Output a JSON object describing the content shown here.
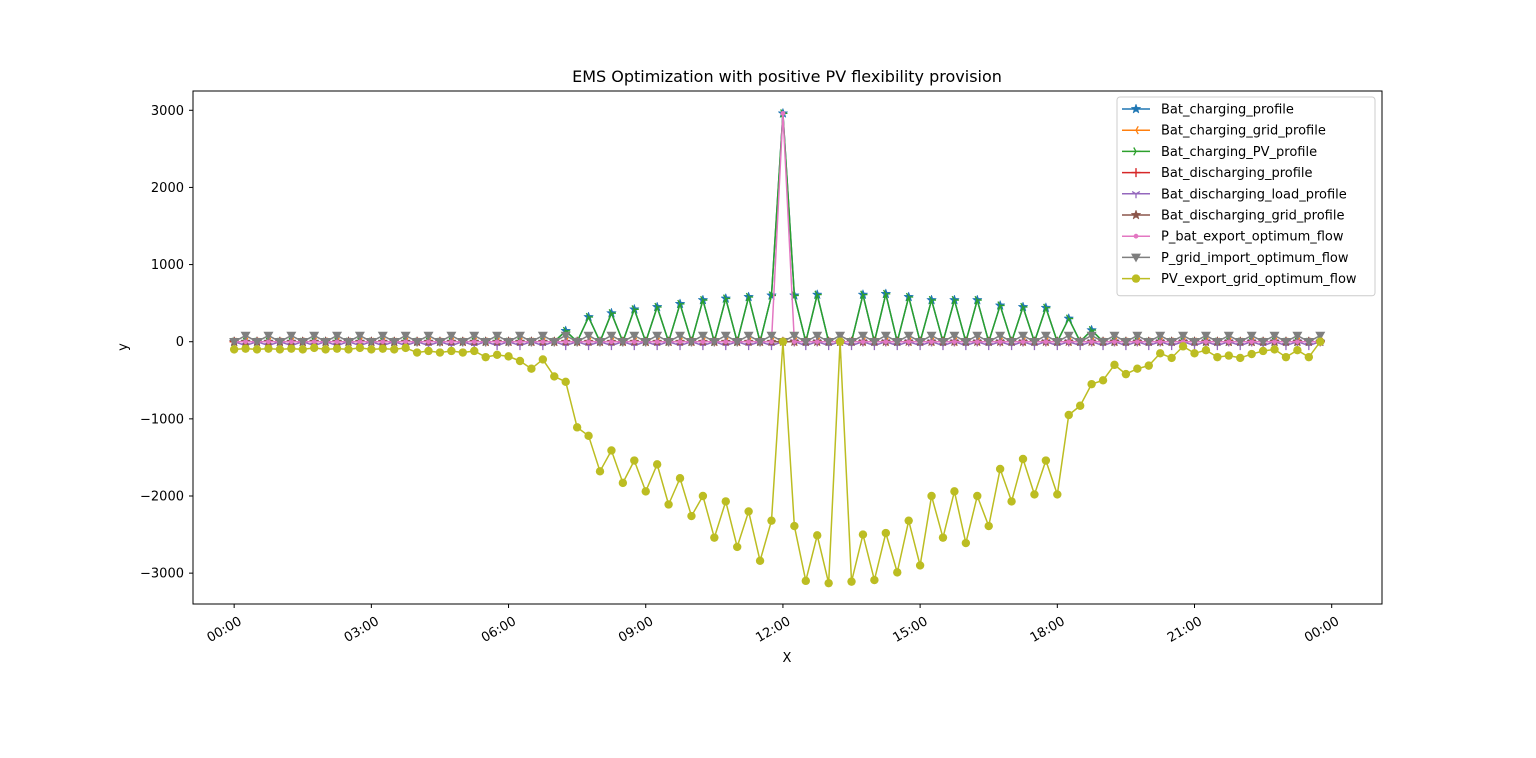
{
  "chart_data": {
    "type": "line",
    "title": "EMS Optimization with positive PV flexibility provision",
    "xlabel": "X",
    "ylabel": "y",
    "x_unit": "hours of day",
    "xlim": [
      -0.9,
      25.1
    ],
    "ylim": [
      -3400,
      3250
    ],
    "yticks": [
      -3000,
      -2000,
      -1000,
      0,
      1000,
      2000,
      3000
    ],
    "xticks": [
      {
        "value": 0,
        "label": "00:00"
      },
      {
        "value": 3,
        "label": "03:00"
      },
      {
        "value": 6,
        "label": "06:00"
      },
      {
        "value": 9,
        "label": "09:00"
      },
      {
        "value": 12,
        "label": "12:00"
      },
      {
        "value": 15,
        "label": "15:00"
      },
      {
        "value": 18,
        "label": "18:00"
      },
      {
        "value": 21,
        "label": "21:00"
      },
      {
        "value": 24,
        "label": "00:00"
      }
    ],
    "grid": false,
    "legend_position": "top-right",
    "x": [
      0,
      0.25,
      0.5,
      0.75,
      1,
      1.25,
      1.5,
      1.75,
      2,
      2.25,
      2.5,
      2.75,
      3,
      3.25,
      3.5,
      3.75,
      4,
      4.25,
      4.5,
      4.75,
      5,
      5.25,
      5.5,
      5.75,
      6,
      6.25,
      6.5,
      6.75,
      7,
      7.25,
      7.5,
      7.75,
      8,
      8.25,
      8.5,
      8.75,
      9,
      9.25,
      9.5,
      9.75,
      10,
      10.25,
      10.5,
      10.75,
      11,
      11.25,
      11.5,
      11.75,
      12,
      12.25,
      12.5,
      12.75,
      13,
      13.25,
      13.5,
      13.75,
      14,
      14.25,
      14.5,
      14.75,
      15,
      15.25,
      15.5,
      15.75,
      16,
      16.25,
      16.5,
      16.75,
      17,
      17.25,
      17.5,
      17.75,
      18,
      18.25,
      18.5,
      18.75,
      19,
      19.25,
      19.5,
      19.75,
      20,
      20.25,
      20.5,
      20.75,
      21,
      21.25,
      21.5,
      21.75,
      22,
      22.25,
      22.5,
      22.75,
      23,
      23.25,
      23.5,
      23.75
    ],
    "series": [
      {
        "name": "Bat_charging_profile",
        "color": "#1f77b4",
        "marker": "star",
        "values": [
          0,
          0,
          0,
          0,
          0,
          0,
          0,
          0,
          0,
          0,
          0,
          0,
          0,
          0,
          0,
          0,
          0,
          0,
          0,
          0,
          0,
          0,
          0,
          0,
          0,
          0,
          0,
          0,
          0,
          140,
          0,
          320,
          0,
          370,
          0,
          420,
          0,
          450,
          0,
          490,
          0,
          540,
          0,
          560,
          0,
          580,
          0,
          600,
          2960,
          600,
          0,
          610,
          0,
          0,
          0,
          610,
          0,
          620,
          0,
          580,
          0,
          540,
          0,
          540,
          0,
          540,
          0,
          470,
          0,
          450,
          0,
          440,
          0,
          300,
          0,
          150,
          0,
          0,
          0,
          0,
          0,
          0,
          0,
          0,
          0,
          0,
          0,
          0,
          0,
          0,
          0,
          0,
          0,
          0,
          0,
          0
        ]
      },
      {
        "name": "Bat_charging_grid_profile",
        "color": "#ff7f0e",
        "marker": "tri_left",
        "values": [
          0,
          0,
          0,
          0,
          0,
          0,
          0,
          0,
          0,
          0,
          0,
          0,
          0,
          0,
          0,
          0,
          0,
          0,
          0,
          0,
          0,
          0,
          0,
          0,
          0,
          0,
          0,
          0,
          0,
          0,
          0,
          0,
          0,
          0,
          0,
          0,
          0,
          0,
          0,
          0,
          0,
          0,
          0,
          0,
          0,
          0,
          0,
          0,
          0,
          0,
          0,
          0,
          0,
          0,
          0,
          0,
          0,
          0,
          0,
          0,
          0,
          0,
          0,
          0,
          0,
          0,
          0,
          0,
          0,
          0,
          0,
          0,
          0,
          0,
          0,
          0,
          0,
          0,
          0,
          0,
          0,
          0,
          0,
          0,
          0,
          0,
          0,
          0,
          0,
          0,
          0,
          0,
          0,
          0,
          0,
          0
        ]
      },
      {
        "name": "Bat_charging_PV_profile",
        "color": "#2ca02c",
        "marker": "tri_right",
        "values": [
          0,
          0,
          0,
          0,
          0,
          0,
          0,
          0,
          0,
          0,
          0,
          0,
          0,
          0,
          0,
          0,
          0,
          0,
          0,
          0,
          0,
          0,
          0,
          0,
          0,
          0,
          0,
          0,
          0,
          140,
          0,
          320,
          0,
          370,
          0,
          420,
          0,
          450,
          0,
          490,
          0,
          540,
          0,
          560,
          0,
          580,
          0,
          600,
          2960,
          600,
          0,
          610,
          0,
          0,
          0,
          610,
          0,
          620,
          0,
          580,
          0,
          540,
          0,
          540,
          0,
          540,
          0,
          470,
          0,
          450,
          0,
          440,
          0,
          300,
          0,
          150,
          0,
          0,
          0,
          0,
          0,
          0,
          0,
          0,
          0,
          0,
          0,
          0,
          0,
          0,
          0,
          0,
          0,
          0,
          0,
          0
        ]
      },
      {
        "name": "Bat_discharging_profile",
        "color": "#d62728",
        "marker": "plus",
        "values": [
          0,
          0,
          0,
          0,
          0,
          0,
          0,
          0,
          0,
          0,
          0,
          0,
          0,
          0,
          0,
          0,
          0,
          0,
          0,
          0,
          0,
          0,
          0,
          0,
          0,
          0,
          0,
          0,
          0,
          0,
          0,
          0,
          0,
          0,
          0,
          0,
          0,
          0,
          0,
          0,
          0,
          0,
          0,
          0,
          0,
          0,
          0,
          0,
          0,
          0,
          0,
          0,
          0,
          0,
          0,
          0,
          0,
          0,
          0,
          0,
          0,
          0,
          0,
          0,
          0,
          0,
          0,
          0,
          0,
          0,
          0,
          0,
          0,
          0,
          0,
          0,
          0,
          0,
          0,
          0,
          0,
          0,
          0,
          0,
          0,
          0,
          0,
          0,
          0,
          0,
          0,
          0,
          0,
          0,
          0,
          0
        ]
      },
      {
        "name": "Bat_discharging_load_profile",
        "color": "#9467bd",
        "marker": "tri_down",
        "values": [
          0,
          -50,
          0,
          -50,
          0,
          -50,
          0,
          -50,
          0,
          -50,
          0,
          -50,
          0,
          -50,
          0,
          -50,
          0,
          -50,
          0,
          -50,
          0,
          -50,
          0,
          -50,
          0,
          -50,
          0,
          -50,
          0,
          -50,
          0,
          -50,
          0,
          -50,
          0,
          -50,
          0,
          -50,
          0,
          -50,
          0,
          -50,
          0,
          -50,
          0,
          -50,
          0,
          -50,
          0,
          0,
          -50,
          0,
          -50,
          0,
          -50,
          0,
          -50,
          0,
          -50,
          0,
          -50,
          0,
          -50,
          0,
          -50,
          0,
          -50,
          0,
          -50,
          0,
          -50,
          0,
          -50,
          0,
          -50,
          0,
          -50,
          0,
          -50,
          0,
          -50,
          0,
          -50,
          0,
          -50,
          0,
          -50,
          0,
          -50,
          0,
          -50,
          0,
          -50,
          0,
          -50,
          0
        ]
      },
      {
        "name": "Bat_discharging_grid_profile",
        "color": "#8c564b",
        "marker": "star",
        "values": [
          0,
          0,
          0,
          0,
          0,
          0,
          0,
          0,
          0,
          0,
          0,
          0,
          0,
          0,
          0,
          0,
          0,
          0,
          0,
          0,
          0,
          0,
          0,
          0,
          0,
          0,
          0,
          0,
          0,
          0,
          0,
          0,
          0,
          0,
          0,
          0,
          0,
          0,
          0,
          0,
          0,
          0,
          0,
          0,
          0,
          0,
          0,
          0,
          0,
          0,
          0,
          0,
          0,
          0,
          0,
          0,
          0,
          0,
          0,
          0,
          0,
          0,
          0,
          0,
          0,
          0,
          0,
          0,
          0,
          0,
          0,
          0,
          0,
          0,
          0,
          0,
          0,
          0,
          0,
          0,
          0,
          0,
          0,
          0,
          0,
          0,
          0,
          0,
          0,
          0,
          0,
          0,
          0,
          0,
          0,
          0
        ]
      },
      {
        "name": "P_bat_export_optimum_flow",
        "color": "#e377c2",
        "marker": "point",
        "values": [
          0,
          0,
          0,
          0,
          0,
          0,
          0,
          0,
          0,
          0,
          0,
          0,
          0,
          0,
          0,
          0,
          0,
          0,
          0,
          0,
          0,
          0,
          0,
          0,
          0,
          0,
          0,
          0,
          0,
          0,
          0,
          0,
          0,
          0,
          0,
          0,
          0,
          0,
          0,
          0,
          0,
          0,
          0,
          0,
          0,
          0,
          0,
          0,
          2960,
          0,
          0,
          0,
          0,
          0,
          0,
          0,
          0,
          0,
          0,
          0,
          0,
          0,
          0,
          0,
          0,
          0,
          0,
          0,
          0,
          0,
          0,
          0,
          0,
          0,
          0,
          0,
          0,
          0,
          0,
          0,
          0,
          0,
          0,
          0,
          0,
          0,
          0,
          0,
          0,
          0,
          0,
          0,
          0,
          0,
          0,
          0
        ]
      },
      {
        "name": "P_grid_import_optimum_flow",
        "color": "#7f7f7f",
        "marker": "triangle_down",
        "values": [
          0,
          80,
          0,
          80,
          0,
          80,
          0,
          80,
          0,
          80,
          0,
          80,
          0,
          80,
          0,
          80,
          0,
          80,
          0,
          80,
          0,
          80,
          0,
          80,
          0,
          80,
          0,
          80,
          0,
          80,
          0,
          80,
          0,
          80,
          0,
          80,
          0,
          80,
          0,
          80,
          0,
          80,
          0,
          80,
          0,
          80,
          0,
          80,
          0,
          80,
          0,
          80,
          0,
          80,
          0,
          80,
          0,
          80,
          0,
          80,
          0,
          80,
          0,
          80,
          0,
          80,
          0,
          80,
          0,
          80,
          0,
          80,
          0,
          80,
          0,
          80,
          0,
          80,
          0,
          80,
          0,
          80,
          0,
          80,
          0,
          80,
          0,
          80,
          0,
          80,
          0,
          80,
          0,
          80,
          0,
          80
        ]
      },
      {
        "name": "PV_export_grid_optimum_flow",
        "color": "#bcbd22",
        "marker": "circle",
        "values": [
          -100,
          -90,
          -100,
          -90,
          -100,
          -90,
          -100,
          -80,
          -100,
          -90,
          -100,
          -80,
          -100,
          -90,
          -100,
          -80,
          -140,
          -120,
          -140,
          -120,
          -140,
          -120,
          -200,
          -170,
          -190,
          -250,
          -350,
          -230,
          -450,
          -520,
          -1110,
          -1220,
          -1680,
          -1410,
          -1830,
          -1540,
          -1940,
          -1590,
          -2110,
          -1770,
          -2260,
          -2000,
          -2540,
          -2070,
          -2660,
          -2200,
          -2840,
          -2320,
          0,
          -2390,
          -3100,
          -2510,
          -3130,
          0,
          -3110,
          -2500,
          -3090,
          -2480,
          -2990,
          -2320,
          -2900,
          -2000,
          -2540,
          -1940,
          -2610,
          -2000,
          -2390,
          -1650,
          -2070,
          -1520,
          -1980,
          -1540,
          -1980,
          -950,
          -830,
          -550,
          -500,
          -300,
          -420,
          -350,
          -310,
          -150,
          -210,
          -60,
          -150,
          -110,
          -200,
          -180,
          -210,
          -160,
          -120,
          -100,
          -200,
          -110,
          -200,
          0
        ]
      }
    ]
  }
}
